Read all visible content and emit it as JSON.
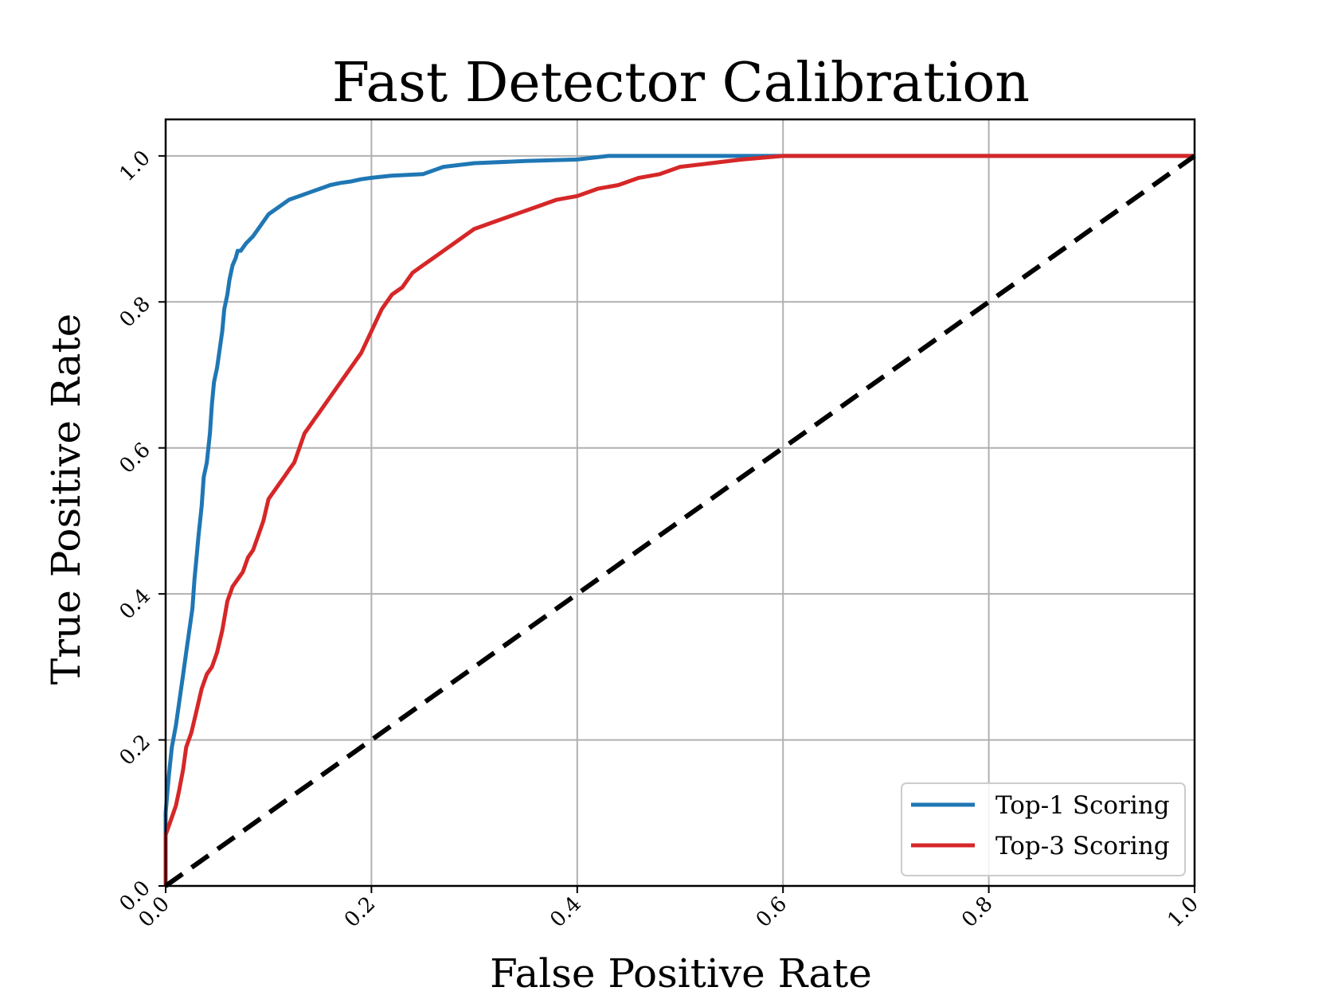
{
  "chart_data": {
    "type": "line",
    "title": "Fast Detector Calibration",
    "xlabel": "False Positive Rate",
    "ylabel": "True Positive Rate",
    "xlim": [
      0,
      1
    ],
    "ylim": [
      0,
      1.05
    ],
    "xticks": [
      "0.0",
      "0.2",
      "0.4",
      "0.6",
      "0.8",
      "1.0"
    ],
    "yticks": [
      "0.0",
      "0.2",
      "0.4",
      "0.6",
      "0.8",
      "1.0"
    ],
    "grid": true,
    "legend_position": "lower-right",
    "series": [
      {
        "name": "Top-1 Scoring",
        "color": "#1f77b4",
        "x": [
          0.0,
          0.0,
          0.003,
          0.006,
          0.01,
          0.013,
          0.017,
          0.02,
          0.023,
          0.026,
          0.028,
          0.03,
          0.032,
          0.035,
          0.037,
          0.04,
          0.043,
          0.045,
          0.047,
          0.05,
          0.052,
          0.055,
          0.057,
          0.06,
          0.062,
          0.065,
          0.068,
          0.07,
          0.073,
          0.078,
          0.085,
          0.09,
          0.095,
          0.1,
          0.11,
          0.12,
          0.13,
          0.14,
          0.15,
          0.16,
          0.17,
          0.18,
          0.19,
          0.2,
          0.22,
          0.25,
          0.27,
          0.3,
          0.35,
          0.4,
          0.43,
          0.5,
          0.6,
          0.7,
          0.8,
          0.9,
          1.0
        ],
        "y": [
          0.0,
          0.1,
          0.15,
          0.19,
          0.22,
          0.25,
          0.29,
          0.32,
          0.35,
          0.38,
          0.42,
          0.45,
          0.48,
          0.52,
          0.56,
          0.58,
          0.62,
          0.66,
          0.69,
          0.71,
          0.73,
          0.76,
          0.79,
          0.81,
          0.83,
          0.85,
          0.86,
          0.87,
          0.87,
          0.88,
          0.89,
          0.9,
          0.91,
          0.92,
          0.93,
          0.94,
          0.945,
          0.95,
          0.955,
          0.96,
          0.963,
          0.965,
          0.968,
          0.97,
          0.973,
          0.975,
          0.985,
          0.99,
          0.993,
          0.995,
          1.0,
          1.0,
          1.0,
          1.0,
          1.0,
          1.0,
          1.0
        ]
      },
      {
        "name": "Top-3 Scoring",
        "color": "#d62728",
        "x": [
          0.0,
          0.0,
          0.005,
          0.01,
          0.013,
          0.017,
          0.02,
          0.025,
          0.03,
          0.035,
          0.04,
          0.045,
          0.05,
          0.055,
          0.06,
          0.065,
          0.07,
          0.075,
          0.08,
          0.085,
          0.09,
          0.095,
          0.1,
          0.105,
          0.11,
          0.115,
          0.12,
          0.125,
          0.13,
          0.135,
          0.14,
          0.145,
          0.15,
          0.16,
          0.17,
          0.175,
          0.18,
          0.185,
          0.19,
          0.2,
          0.21,
          0.22,
          0.23,
          0.24,
          0.25,
          0.26,
          0.27,
          0.28,
          0.3,
          0.32,
          0.34,
          0.36,
          0.38,
          0.4,
          0.42,
          0.44,
          0.46,
          0.48,
          0.5,
          0.53,
          0.56,
          0.6,
          0.65,
          0.7,
          0.8,
          0.9,
          1.0
        ],
        "y": [
          0.0,
          0.07,
          0.09,
          0.11,
          0.13,
          0.16,
          0.19,
          0.21,
          0.24,
          0.27,
          0.29,
          0.3,
          0.32,
          0.35,
          0.39,
          0.41,
          0.42,
          0.43,
          0.45,
          0.46,
          0.48,
          0.5,
          0.53,
          0.54,
          0.55,
          0.56,
          0.57,
          0.58,
          0.6,
          0.62,
          0.63,
          0.64,
          0.65,
          0.67,
          0.69,
          0.7,
          0.71,
          0.72,
          0.73,
          0.76,
          0.79,
          0.81,
          0.82,
          0.84,
          0.85,
          0.86,
          0.87,
          0.88,
          0.9,
          0.91,
          0.92,
          0.93,
          0.94,
          0.945,
          0.955,
          0.96,
          0.97,
          0.975,
          0.985,
          0.99,
          0.995,
          1.0,
          1.0,
          1.0,
          1.0,
          1.0,
          1.0
        ]
      },
      {
        "name": "",
        "color": "#000000",
        "style": "dashed",
        "x": [
          0.0,
          1.0
        ],
        "y": [
          0.0,
          1.0
        ]
      }
    ]
  }
}
